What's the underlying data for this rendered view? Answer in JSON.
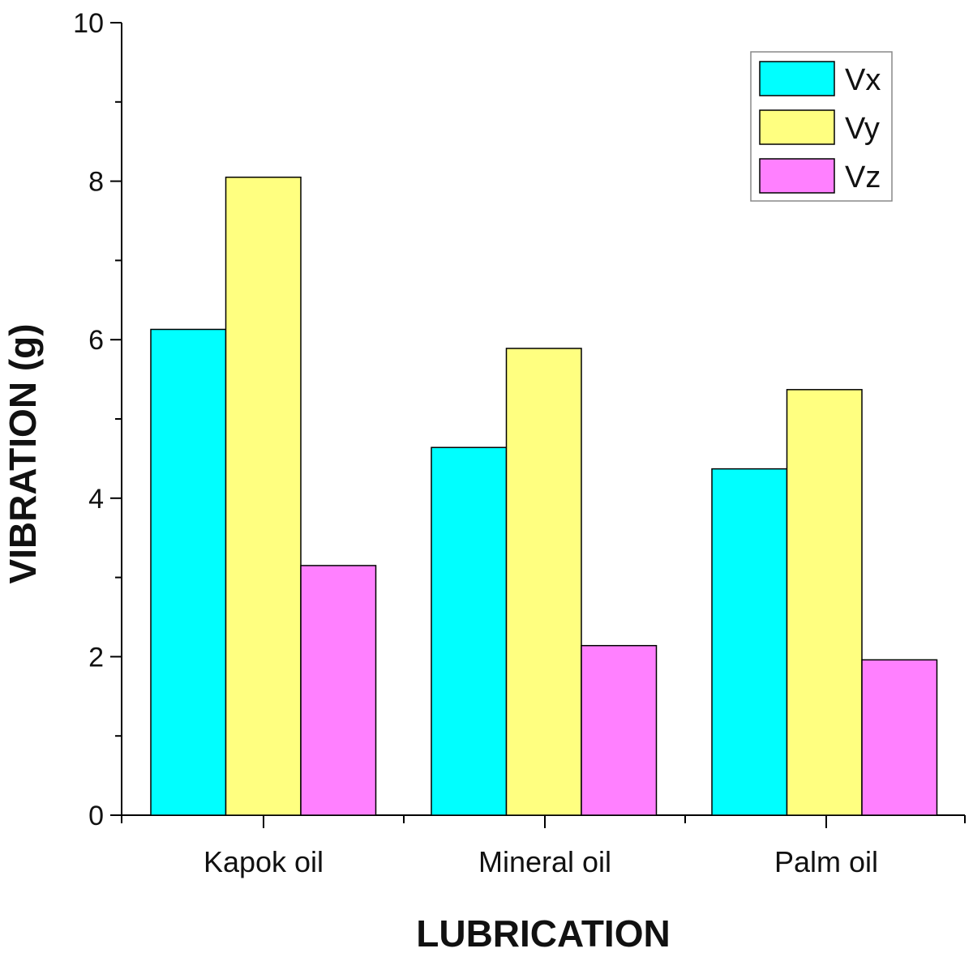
{
  "chart_data": {
    "type": "bar",
    "xlabel": "LUBRICATION",
    "ylabel": "VIBRATION (g)",
    "categories": [
      "Kapok oil",
      "Mineral oil",
      "Palm oil"
    ],
    "series": [
      {
        "name": "Vx",
        "color": "#00FFFF",
        "values": [
          6.13,
          4.64,
          4.37
        ]
      },
      {
        "name": "Vy",
        "color": "#FFFF80",
        "values": [
          8.05,
          5.89,
          5.37
        ]
      },
      {
        "name": "Vz",
        "color": "#FF80FF",
        "values": [
          3.15,
          2.14,
          1.96
        ]
      }
    ],
    "ylim": [
      0,
      10
    ],
    "yticks": [
      "0",
      "2",
      "4",
      "6",
      "8",
      "10"
    ],
    "grid": false,
    "legend_position": "top-right"
  }
}
